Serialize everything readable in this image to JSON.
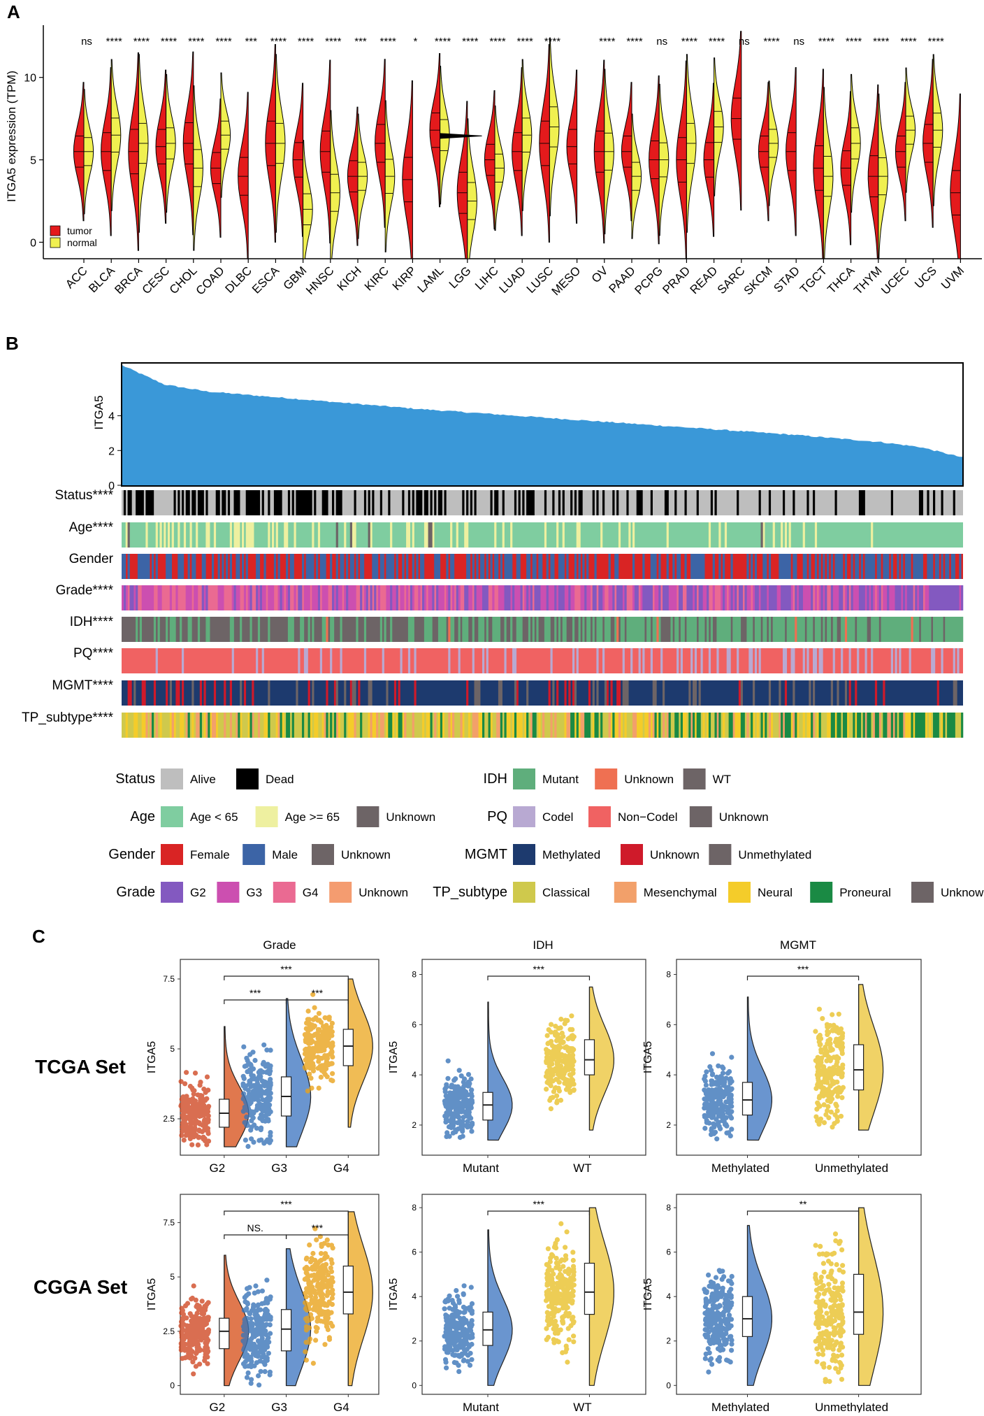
{
  "panels": {
    "a": "A",
    "b": "B",
    "c": "C"
  },
  "panelA": {
    "ylabel": "ITGA5 expression (TPM)",
    "yticks": [
      0,
      5,
      10
    ],
    "legend": [
      {
        "label": "tumor",
        "color": "#e41a1c"
      },
      {
        "label": "normal",
        "color": "#f0f050"
      }
    ],
    "tumorColor": "#e41a1c",
    "normalColor": "#f0f050"
  },
  "panelB": {
    "ylabel": "ITGA5",
    "yticks": [
      0,
      2,
      4
    ],
    "barColor": "#3a98d8",
    "tracks": [
      "Status****",
      "Age****",
      "Gender",
      "Grade****",
      "IDH****",
      "PQ****",
      "MGMT****",
      "TP_subtype****"
    ]
  },
  "legendB": {
    "left": [
      {
        "title": "Status",
        "items": [
          {
            "label": "Alive",
            "color": "#bebebe"
          },
          {
            "label": "Dead",
            "color": "#000000"
          }
        ]
      },
      {
        "title": "Age",
        "items": [
          {
            "label": "Age < 65",
            "color": "#7fcda0"
          },
          {
            "label": "Age >= 65",
            "color": "#eef0a0"
          },
          {
            "label": "Unknown",
            "color": "#6d6466"
          }
        ]
      },
      {
        "title": "Gender",
        "items": [
          {
            "label": "Female",
            "color": "#d92424"
          },
          {
            "label": "Male",
            "color": "#3c64a6"
          },
          {
            "label": "Unknown",
            "color": "#6d6466"
          }
        ]
      },
      {
        "title": "Grade",
        "items": [
          {
            "label": "G2",
            "color": "#8359c0"
          },
          {
            "label": "G3",
            "color": "#cc4fb0"
          },
          {
            "label": "G4",
            "color": "#ea6a92"
          },
          {
            "label": "Unknown",
            "color": "#f49c70"
          }
        ]
      }
    ],
    "right": [
      {
        "title": "IDH",
        "items": [
          {
            "label": "Mutant",
            "color": "#5fae7c"
          },
          {
            "label": "Unknown",
            "color": "#ef7052"
          },
          {
            "label": "WT",
            "color": "#6d6466"
          }
        ]
      },
      {
        "title": "PQ",
        "items": [
          {
            "label": "Codel",
            "color": "#b8a9d2"
          },
          {
            "label": "Non−Codel",
            "color": "#f06262"
          },
          {
            "label": "Unknown",
            "color": "#6d6466"
          }
        ]
      },
      {
        "title": "MGMT",
        "items": [
          {
            "label": "Methylated",
            "color": "#1d3a6e"
          },
          {
            "label": "Unknown",
            "color": "#cf1a2a"
          },
          {
            "label": "Unmethylated",
            "color": "#6d6466"
          }
        ]
      },
      {
        "title": "TP_subtype",
        "items": [
          {
            "label": "Classical",
            "color": "#cfc94c"
          },
          {
            "label": "Mesenchymal",
            "color": "#f2a06a"
          },
          {
            "label": "Neural",
            "color": "#f4cc2a"
          },
          {
            "label": "Proneural",
            "color": "#1a8a44"
          },
          {
            "label": "Unknown",
            "color": "#6d6466"
          }
        ]
      }
    ]
  },
  "panelC": {
    "setLabels": [
      "TCGA Set",
      "CGGA Set"
    ],
    "ylabel": "ITGA5",
    "columns": [
      "Grade",
      "IDH",
      "MGMT"
    ]
  },
  "chart_data": [
    {
      "id": "A",
      "type": "violin",
      "title": "",
      "xlabel": "",
      "ylabel": "ITGA5 expression (TPM)",
      "ylim": [
        -1,
        13
      ],
      "categories": [
        "ACC",
        "BLCA",
        "BRCA",
        "CESC",
        "CHOL",
        "COAD",
        "DLBC",
        "ESCA",
        "GBM",
        "HNSC",
        "KICH",
        "KIRC",
        "KIRP",
        "LAML",
        "LGG",
        "LIHC",
        "LUAD",
        "LUSC",
        "MESO",
        "OV",
        "PAAD",
        "PCPG",
        "PRAD",
        "READ",
        "SARC",
        "SKCM",
        "STAD",
        "TGCT",
        "THCA",
        "THYM",
        "UCEC",
        "UCS",
        "UVM"
      ],
      "significance": [
        "ns",
        "****",
        "****",
        "****",
        "****",
        "****",
        "***",
        "****",
        "****",
        "****",
        "***",
        "****",
        "*",
        "****",
        "****",
        "****",
        "****",
        "****",
        "",
        "****",
        "****",
        "ns",
        "****",
        "****",
        "ns",
        "****",
        "ns",
        "****",
        "****",
        "****",
        "****",
        "****",
        ""
      ],
      "series": [
        {
          "name": "tumor",
          "values": [
            5.5,
            5.5,
            5.5,
            5.8,
            6.0,
            4.5,
            4.0,
            6.0,
            5.0,
            5.5,
            4.0,
            6.0,
            3.8,
            6.8,
            3.0,
            5.0,
            5.5,
            6.0,
            5.8,
            5.5,
            5.5,
            5.0,
            5.0,
            5.0,
            7.5,
            5.5,
            5.5,
            4.5,
            4.5,
            4.0,
            5.5,
            6.0,
            3.0
          ]
        },
        {
          "name": "normal",
          "values": [
            5.5,
            6.5,
            6.0,
            6.0,
            4.5,
            6.5,
            null,
            6.0,
            2.0,
            3.0,
            4.0,
            4.0,
            null,
            6.5,
            2.5,
            4.5,
            6.5,
            7.0,
            null,
            5.5,
            4.0,
            5.0,
            6.0,
            7.0,
            null,
            6.0,
            null,
            4.0,
            6.0,
            4.0,
            6.8,
            6.8,
            null
          ]
        }
      ]
    },
    {
      "id": "B",
      "type": "bar",
      "title": "",
      "ylabel": "ITGA5",
      "ylim": [
        0,
        7
      ],
      "x": [
        0.0,
        0.05,
        0.1,
        0.2,
        0.35,
        0.5,
        0.65,
        0.8,
        0.9,
        0.95,
        1.0
      ],
      "values": [
        6.9,
        5.8,
        5.4,
        5.0,
        4.4,
        3.9,
        3.4,
        2.9,
        2.5,
        2.2,
        1.6
      ]
    },
    {
      "id": "C-TCGA-Grade",
      "type": "box",
      "title": "Grade",
      "ylabel": "ITGA5",
      "ylim": [
        1.2,
        8.2
      ],
      "yticks": [
        2.5,
        5.0,
        7.5
      ],
      "categories": [
        "G2",
        "G3",
        "G4"
      ],
      "medians": [
        2.7,
        3.3,
        5.1
      ],
      "q1": [
        2.2,
        2.6,
        4.4
      ],
      "q3": [
        3.2,
        4.0,
        5.7
      ],
      "whisker_low": [
        1.5,
        1.5,
        2.2
      ],
      "whisker_high": [
        5.8,
        6.8,
        7.5
      ],
      "comparisons": [
        {
          "groups": [
            "G2",
            "G4"
          ],
          "label": "***"
        },
        {
          "groups": [
            "G2",
            "G3"
          ],
          "label": "***"
        },
        {
          "groups": [
            "G3",
            "G4"
          ],
          "label": "***"
        }
      ]
    },
    {
      "id": "C-TCGA-IDH",
      "type": "box",
      "title": "IDH",
      "ylabel": "ITGA5",
      "ylim": [
        0.8,
        8.6
      ],
      "yticks": [
        2,
        4,
        6,
        8
      ],
      "categories": [
        "Mutant",
        "WT"
      ],
      "medians": [
        2.8,
        4.6
      ],
      "q1": [
        2.2,
        4.0
      ],
      "q3": [
        3.3,
        5.4
      ],
      "whisker_low": [
        1.4,
        1.8
      ],
      "whisker_high": [
        6.9,
        7.5
      ],
      "comparisons": [
        {
          "groups": [
            "Mutant",
            "WT"
          ],
          "label": "***"
        }
      ]
    },
    {
      "id": "C-TCGA-MGMT",
      "type": "box",
      "title": "MGMT",
      "ylabel": "ITGA5",
      "ylim": [
        0.8,
        8.6
      ],
      "yticks": [
        2,
        4,
        6,
        8
      ],
      "categories": [
        "Methylated",
        "Unmethylated"
      ],
      "medians": [
        3.0,
        4.2
      ],
      "q1": [
        2.4,
        3.4
      ],
      "q3": [
        3.7,
        5.2
      ],
      "whisker_low": [
        1.4,
        1.8
      ],
      "whisker_high": [
        7.1,
        7.6
      ],
      "comparisons": [
        {
          "groups": [
            "Methylated",
            "Unmethylated"
          ],
          "label": "***"
        }
      ]
    },
    {
      "id": "C-CGGA-Grade",
      "type": "box",
      "title": "",
      "ylabel": "ITGA5",
      "ylim": [
        -0.4,
        8.8
      ],
      "yticks": [
        0.0,
        2.5,
        5.0,
        7.5
      ],
      "categories": [
        "G2",
        "G3",
        "G4"
      ],
      "medians": [
        2.5,
        2.6,
        4.3
      ],
      "q1": [
        1.7,
        1.6,
        3.3
      ],
      "q3": [
        3.1,
        3.5,
        5.5
      ],
      "whisker_low": [
        0.0,
        0.0,
        0.0
      ],
      "whisker_high": [
        6.0,
        6.3,
        8.0
      ],
      "comparisons": [
        {
          "groups": [
            "G2",
            "G4"
          ],
          "label": "***"
        },
        {
          "groups": [
            "G2",
            "G3"
          ],
          "label": "NS."
        },
        {
          "groups": [
            "G3",
            "G4"
          ],
          "label": "***"
        }
      ]
    },
    {
      "id": "C-CGGA-IDH",
      "type": "box",
      "title": "",
      "ylabel": "ITGA5",
      "ylim": [
        -0.4,
        8.6
      ],
      "yticks": [
        0,
        2,
        4,
        6,
        8
      ],
      "categories": [
        "Mutant",
        "WT"
      ],
      "medians": [
        2.5,
        4.2
      ],
      "q1": [
        1.8,
        3.2
      ],
      "q3": [
        3.3,
        5.5
      ],
      "whisker_low": [
        0.0,
        0.0
      ],
      "whisker_high": [
        7.0,
        8.0
      ],
      "comparisons": [
        {
          "groups": [
            "Mutant",
            "WT"
          ],
          "label": "***"
        }
      ]
    },
    {
      "id": "C-CGGA-MGMT",
      "type": "box",
      "title": "",
      "ylabel": "ITGA5",
      "ylim": [
        -0.4,
        8.6
      ],
      "yticks": [
        0,
        2,
        4,
        6,
        8
      ],
      "categories": [
        "Methylated",
        "Unmethylated"
      ],
      "medians": [
        3.0,
        3.3
      ],
      "q1": [
        2.2,
        2.3
      ],
      "q3": [
        4.0,
        5.0
      ],
      "whisker_low": [
        0.0,
        0.0
      ],
      "whisker_high": [
        7.2,
        8.0
      ],
      "comparisons": [
        {
          "groups": [
            "Methylated",
            "Unmethylated"
          ],
          "label": "**"
        }
      ]
    }
  ]
}
